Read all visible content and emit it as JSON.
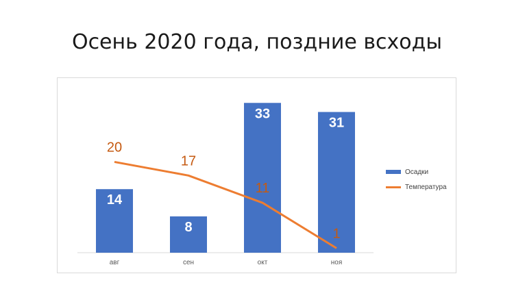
{
  "slide": {
    "title": "Осень 2020 года, поздние всходы"
  },
  "colors": {
    "bars": "#4472C4",
    "line": "#ED7D31",
    "axis": "#d9d9d9"
  },
  "chart_data": {
    "type": "bar",
    "title": "Осень 2020 года, поздние всходы",
    "categories": [
      "авг",
      "сен",
      "окт",
      "ноя"
    ],
    "series": [
      {
        "name": "Осадки",
        "type": "bar",
        "values": [
          14,
          8,
          33,
          31
        ]
      },
      {
        "name": "Температура",
        "type": "line",
        "values": [
          20,
          17,
          11,
          1
        ]
      }
    ],
    "ylim": [
      0,
      35
    ],
    "grid": false,
    "legend": "right"
  }
}
